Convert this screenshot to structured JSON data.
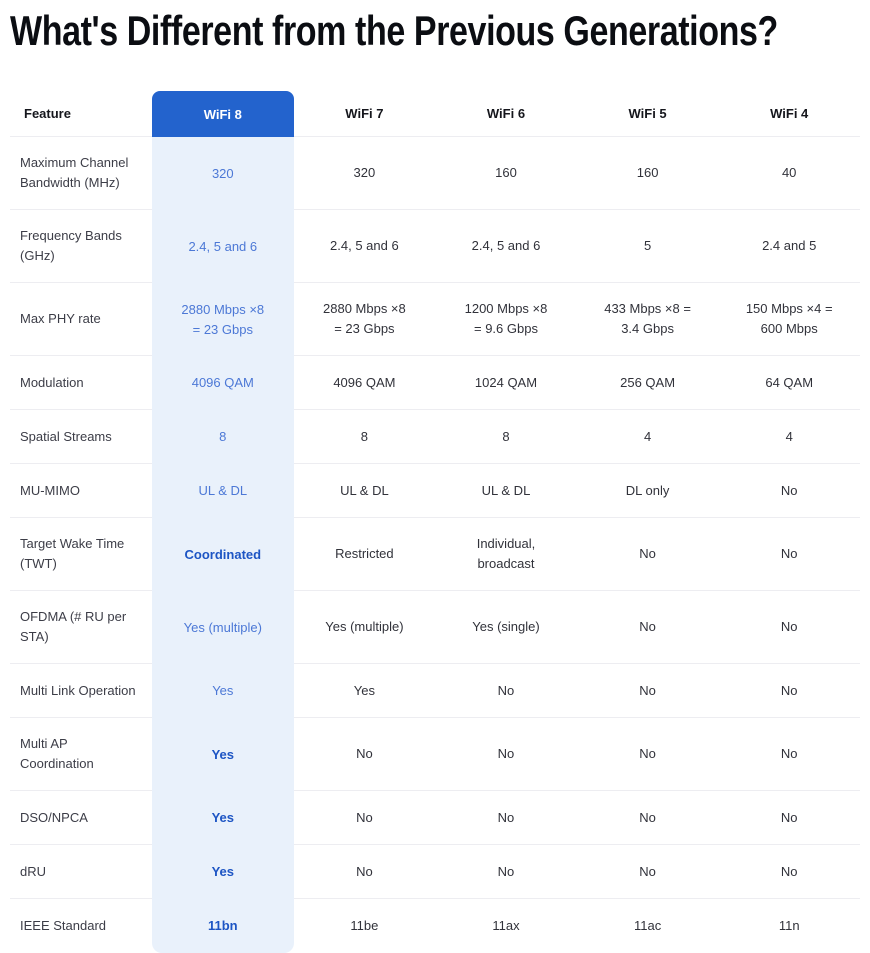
{
  "page": {
    "title": "What's Different from the Previous Generations?"
  },
  "table": {
    "header": {
      "feature": "Feature",
      "generations": [
        "WiFi 8",
        "WiFi 7",
        "WiFi 6",
        "WiFi 5",
        "WiFi 4"
      ]
    },
    "highlighted_column": "WiFi 8",
    "rows": [
      {
        "feature": "Maximum Channel Bandwidth (MHz)",
        "values": [
          "320",
          "320",
          "160",
          "160",
          "40"
        ],
        "wifi8_emphasis": "normal"
      },
      {
        "feature": "Frequency Bands (GHz)",
        "values": [
          "2.4, 5 and 6",
          "2.4, 5 and 6",
          "2.4, 5 and 6",
          "5",
          "2.4 and 5"
        ],
        "wifi8_emphasis": "normal"
      },
      {
        "feature": "Max PHY rate",
        "values": [
          "2880 Mbps ×8\n= 23 Gbps",
          "2880 Mbps ×8\n= 23 Gbps",
          "1200 Mbps ×8\n= 9.6 Gbps",
          "433 Mbps ×8 =\n3.4 Gbps",
          "150 Mbps ×4 =\n600 Mbps"
        ],
        "wifi8_emphasis": "normal"
      },
      {
        "feature": "Modulation",
        "values": [
          "4096 QAM",
          "4096 QAM",
          "1024 QAM",
          "256 QAM",
          "64 QAM"
        ],
        "wifi8_emphasis": "normal"
      },
      {
        "feature": "Spatial Streams",
        "values": [
          "8",
          "8",
          "8",
          "4",
          "4"
        ],
        "wifi8_emphasis": "normal"
      },
      {
        "feature": "MU-MIMO",
        "values": [
          "UL & DL",
          "UL & DL",
          "UL & DL",
          "DL only",
          "No"
        ],
        "wifi8_emphasis": "normal"
      },
      {
        "feature": "Target Wake Time (TWT)",
        "values": [
          "Coordinated",
          "Restricted",
          "Individual,\nbroadcast",
          "No",
          "No"
        ],
        "wifi8_emphasis": "bold"
      },
      {
        "feature": "OFDMA (# RU per STA)",
        "values": [
          "Yes (multiple)",
          "Yes (multiple)",
          "Yes (single)",
          "No",
          "No"
        ],
        "wifi8_emphasis": "normal"
      },
      {
        "feature": "Multi Link Operation",
        "values": [
          "Yes",
          "Yes",
          "No",
          "No",
          "No"
        ],
        "wifi8_emphasis": "normal"
      },
      {
        "feature": "Multi AP Coordination",
        "values": [
          "Yes",
          "No",
          "No",
          "No",
          "No"
        ],
        "wifi8_emphasis": "bold"
      },
      {
        "feature": "DSO/NPCA",
        "values": [
          "Yes",
          "No",
          "No",
          "No",
          "No"
        ],
        "wifi8_emphasis": "bold"
      },
      {
        "feature": "dRU",
        "values": [
          "Yes",
          "No",
          "No",
          "No",
          "No"
        ],
        "wifi8_emphasis": "bold"
      },
      {
        "feature": "IEEE Standard",
        "values": [
          "11bn",
          "11be",
          "11ax",
          "11ac",
          "11n"
        ],
        "wifi8_emphasis": "bold"
      }
    ]
  },
  "colors": {
    "accent_blue": "#2363cd",
    "highlight_background": "#e9f1fb",
    "value_blue": "#4c78d6",
    "value_blue_bold": "#1d55c4"
  }
}
